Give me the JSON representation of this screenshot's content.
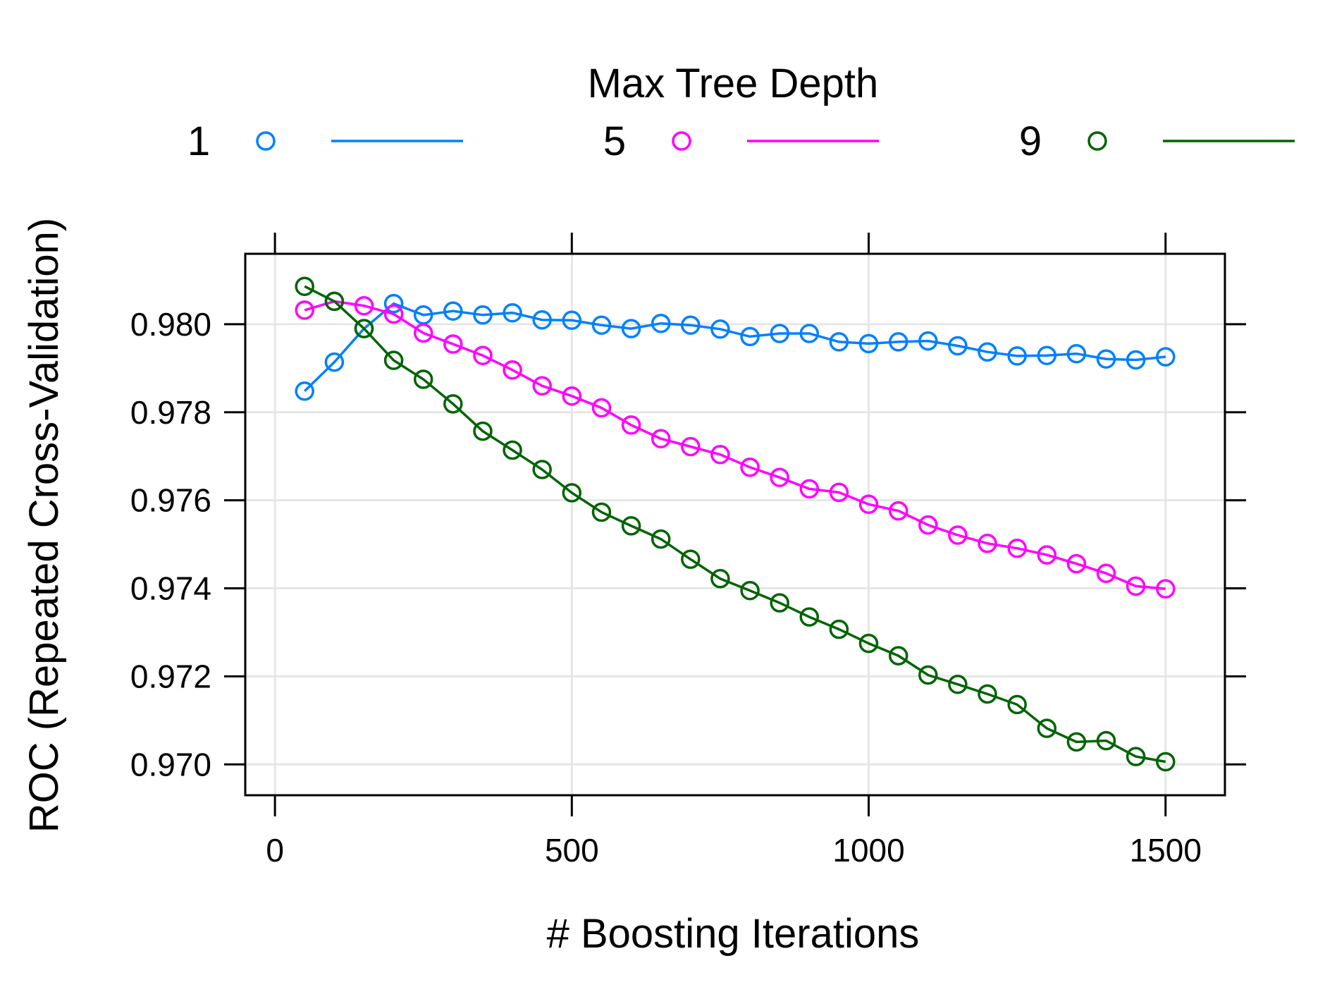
{
  "chart_data": {
    "type": "line",
    "xlabel": "# Boosting Iterations",
    "ylabel": "ROC (Repeated Cross-Validation)",
    "xlim": [
      -50,
      1600
    ],
    "ylim": [
      0.9693,
      0.9816
    ],
    "x_ticks": [
      0,
      500,
      1000,
      1500
    ],
    "x_tick_labels": [
      "0",
      "500",
      "1000",
      "1500"
    ],
    "y_ticks": [
      0.97,
      0.972,
      0.974,
      0.976,
      0.978,
      0.98
    ],
    "y_tick_labels": [
      "0.970",
      "0.972",
      "0.974",
      "0.976",
      "0.978",
      "0.980"
    ],
    "grid": true,
    "legend": {
      "title": "Max Tree Depth",
      "placement": "top",
      "orientation": "horizontal"
    },
    "x": [
      50,
      100,
      150,
      200,
      250,
      300,
      350,
      400,
      450,
      500,
      550,
      600,
      650,
      700,
      750,
      800,
      850,
      900,
      950,
      1000,
      1050,
      1100,
      1150,
      1200,
      1250,
      1300,
      1350,
      1400,
      1450,
      1500
    ],
    "series": [
      {
        "name": "1",
        "color": "#0080ff",
        "values": [
          0.97848,
          0.97914,
          0.9799,
          0.98047,
          0.98021,
          0.9803,
          0.98021,
          0.98026,
          0.9801,
          0.98009,
          0.97998,
          0.9799,
          0.98002,
          0.97998,
          0.97989,
          0.97972,
          0.97979,
          0.97979,
          0.9796,
          0.97956,
          0.9796,
          0.97962,
          0.97951,
          0.97937,
          0.97928,
          0.97929,
          0.97933,
          0.97921,
          0.97919,
          0.97926
        ]
      },
      {
        "name": "5",
        "color": "#ff00ff",
        "values": [
          0.98032,
          0.98052,
          0.98042,
          0.98023,
          0.9798,
          0.97955,
          0.97929,
          0.97896,
          0.9786,
          0.97837,
          0.9781,
          0.97771,
          0.9774,
          0.97722,
          0.97704,
          0.97675,
          0.97652,
          0.97626,
          0.97618,
          0.97591,
          0.97576,
          0.97544,
          0.97521,
          0.97502,
          0.97491,
          0.97476,
          0.97456,
          0.97434,
          0.97405,
          0.97399
        ]
      },
      {
        "name": "9",
        "color": "#006400",
        "values": [
          0.98086,
          0.98052,
          0.9799,
          0.97918,
          0.97875,
          0.97819,
          0.97757,
          0.97714,
          0.9767,
          0.97617,
          0.97573,
          0.97542,
          0.97512,
          0.97466,
          0.97422,
          0.97395,
          0.97367,
          0.97335,
          0.97307,
          0.97275,
          0.97247,
          0.97203,
          0.97182,
          0.9716,
          0.97136,
          0.97082,
          0.97051,
          0.97054,
          0.97018,
          0.97006
        ]
      }
    ]
  }
}
